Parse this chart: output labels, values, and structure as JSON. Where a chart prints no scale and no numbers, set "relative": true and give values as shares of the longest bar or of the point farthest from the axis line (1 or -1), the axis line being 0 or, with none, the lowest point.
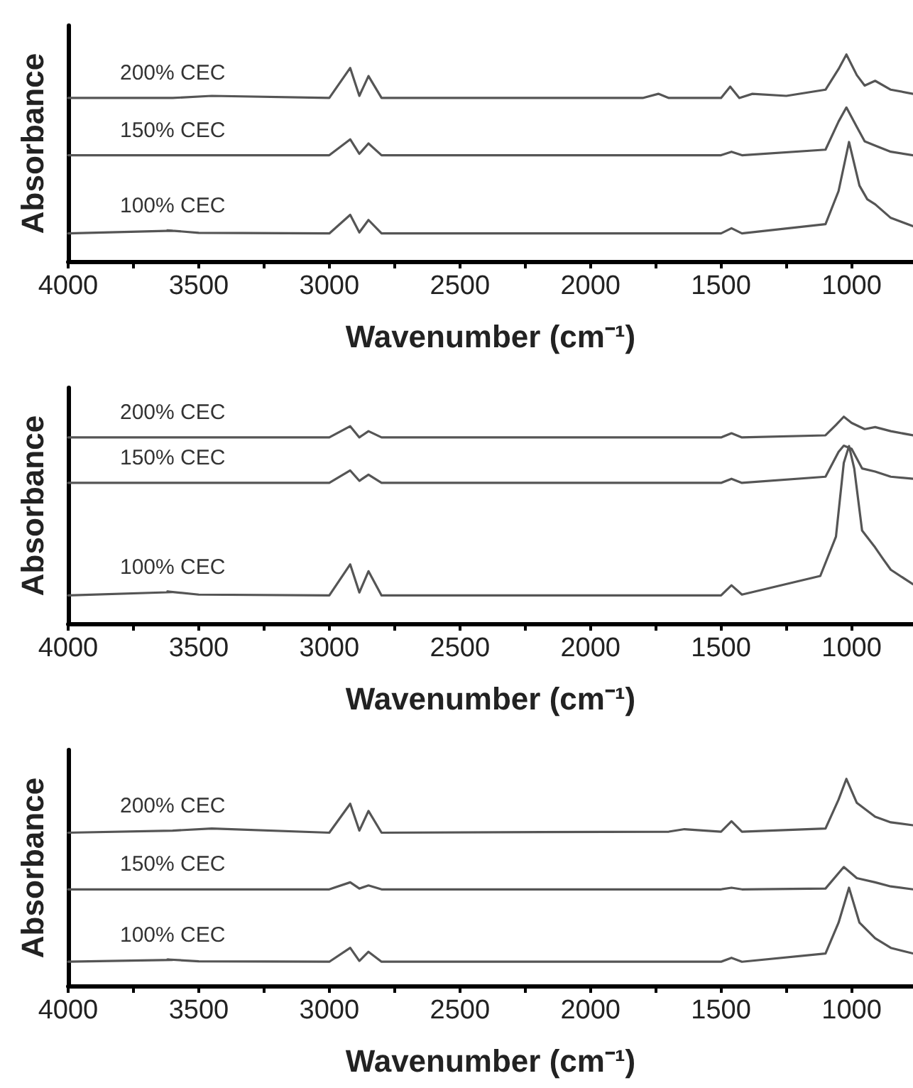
{
  "chart_data": [
    {
      "type": "line",
      "relative": true,
      "xlabel": "Wavenumber (cm⁻¹)",
      "ylabel": "Absorbance",
      "xlim": [
        4000,
        765
      ],
      "xticks": [
        4000,
        {
          "value": 3750,
          "label": null
        },
        3500,
        {
          "value": 3250,
          "label": null
        },
        3000,
        {
          "value": 2750,
          "label": null
        },
        2500,
        {
          "value": 2250,
          "label": null
        },
        2000,
        {
          "value": 1750,
          "label": null
        },
        1500,
        {
          "value": 1250,
          "label": null
        },
        1000
      ],
      "grid": false,
      "legend": false,
      "line_style": "solid",
      "series": [
        {
          "name": "200% CEC",
          "color": "#555555",
          "x": [
            4000,
            3600,
            3450,
            3000,
            2920,
            2885,
            2850,
            2800,
            1800,
            1740,
            1700,
            1500,
            1465,
            1430,
            1380,
            1250,
            1100,
            1050,
            1020,
            980,
            950,
            910,
            850,
            765
          ],
          "values": [
            0.79,
            0.79,
            0.8,
            0.79,
            0.935,
            0.8,
            0.896,
            0.79,
            0.79,
            0.81,
            0.79,
            0.79,
            0.845,
            0.79,
            0.81,
            0.8,
            0.83,
            0.93,
            1.0,
            0.9,
            0.85,
            0.873,
            0.83,
            0.81
          ]
        },
        {
          "name": "150% CEC",
          "color": "#555555",
          "x": [
            4000,
            3600,
            3000,
            2920,
            2885,
            2850,
            2800,
            1500,
            1460,
            1420,
            1100,
            1050,
            1020,
            980,
            950,
            910,
            850,
            765
          ],
          "values": [
            0.513,
            0.513,
            0.513,
            0.59,
            0.52,
            0.57,
            0.513,
            0.513,
            0.53,
            0.513,
            0.54,
            0.676,
            0.744,
            0.65,
            0.58,
            0.56,
            0.53,
            0.513
          ]
        },
        {
          "name": "100% CEC",
          "color": "#555555",
          "x": [
            4000,
            3600,
            3620,
            3500,
            3000,
            2920,
            2885,
            2850,
            2800,
            1500,
            1460,
            1420,
            1100,
            1050,
            1010,
            970,
            940,
            910,
            850,
            765
          ],
          "values": [
            0.135,
            0.148,
            0.15,
            0.138,
            0.135,
            0.225,
            0.14,
            0.2,
            0.135,
            0.135,
            0.16,
            0.135,
            0.18,
            0.34,
            0.577,
            0.366,
            0.3,
            0.276,
            0.21,
            0.17
          ]
        }
      ]
    },
    {
      "type": "line",
      "relative": true,
      "xlabel": "Wavenumber (cm⁻¹)",
      "ylabel": "Absorbance",
      "xlim": [
        4000,
        765
      ],
      "xticks": [
        4000,
        {
          "value": 3750,
          "label": null
        },
        3500,
        {
          "value": 3250,
          "label": null
        },
        3000,
        {
          "value": 2750,
          "label": null
        },
        2500,
        {
          "value": 2250,
          "label": null
        },
        2000,
        {
          "value": 1750,
          "label": null
        },
        1500,
        {
          "value": 1250,
          "label": null
        },
        1000
      ],
      "grid": false,
      "legend": false,
      "line_style": "solid",
      "series": [
        {
          "name": "200% CEC",
          "color": "#555555",
          "x": [
            4000,
            3600,
            3000,
            2920,
            2885,
            2850,
            2800,
            1500,
            1460,
            1420,
            1100,
            1060,
            1030,
            1000,
            950,
            910,
            850,
            765
          ],
          "values": [
            0.9,
            0.9,
            0.9,
            0.954,
            0.9,
            0.93,
            0.9,
            0.9,
            0.92,
            0.9,
            0.91,
            0.96,
            1.0,
            0.97,
            0.94,
            0.95,
            0.93,
            0.91
          ]
        },
        {
          "name": "150% CEC",
          "color": "#555555",
          "x": [
            4000,
            3600,
            3000,
            2920,
            2885,
            2850,
            2800,
            1500,
            1460,
            1420,
            1100,
            1050,
            1030,
            1000,
            960,
            910,
            850,
            765
          ],
          "values": [
            0.68,
            0.68,
            0.68,
            0.74,
            0.69,
            0.72,
            0.68,
            0.68,
            0.7,
            0.68,
            0.71,
            0.83,
            0.86,
            0.845,
            0.75,
            0.735,
            0.71,
            0.7
          ]
        },
        {
          "name": "100% CEC",
          "color": "#555555",
          "x": [
            4000,
            3600,
            3620,
            3500,
            3000,
            2920,
            2885,
            2850,
            2800,
            1500,
            1460,
            1420,
            1120,
            1060,
            1030,
            1010,
            990,
            960,
            910,
            880,
            850,
            765
          ],
          "values": [
            0.136,
            0.152,
            0.155,
            0.14,
            0.136,
            0.286,
            0.15,
            0.253,
            0.136,
            0.136,
            0.185,
            0.14,
            0.23,
            0.42,
            0.777,
            0.858,
            0.75,
            0.45,
            0.368,
            0.313,
            0.26,
            0.19
          ]
        }
      ]
    },
    {
      "type": "line",
      "relative": true,
      "xlabel": "Wavenumber (cm⁻¹)",
      "ylabel": "Absorbance",
      "xlim": [
        4000,
        765
      ],
      "xticks": [
        4000,
        {
          "value": 3750,
          "label": null
        },
        3500,
        {
          "value": 3250,
          "label": null
        },
        3000,
        {
          "value": 2750,
          "label": null
        },
        2500,
        {
          "value": 2250,
          "label": null
        },
        2000,
        {
          "value": 1750,
          "label": null
        },
        1500,
        {
          "value": 1250,
          "label": null
        },
        1000
      ],
      "grid": false,
      "legend": false,
      "line_style": "solid",
      "series": [
        {
          "name": "200% CEC",
          "color": "#555555",
          "x": [
            4000,
            3600,
            3450,
            3000,
            2920,
            2885,
            2850,
            2800,
            1700,
            1640,
            1500,
            1460,
            1420,
            1100,
            1050,
            1020,
            980,
            910,
            850,
            765
          ],
          "values": [
            0.74,
            0.75,
            0.76,
            0.74,
            0.88,
            0.75,
            0.845,
            0.74,
            0.745,
            0.757,
            0.745,
            0.795,
            0.745,
            0.76,
            0.9,
            1.0,
            0.884,
            0.817,
            0.79,
            0.776
          ]
        },
        {
          "name": "150% CEC",
          "color": "#555555",
          "x": [
            4000,
            3600,
            3000,
            2920,
            2885,
            2850,
            2800,
            1500,
            1460,
            1420,
            1100,
            1030,
            980,
            910,
            850,
            765
          ],
          "values": [
            0.466,
            0.466,
            0.466,
            0.5,
            0.47,
            0.485,
            0.466,
            0.466,
            0.474,
            0.466,
            0.47,
            0.574,
            0.52,
            0.5,
            0.48,
            0.466
          ]
        },
        {
          "name": "100% CEC",
          "color": "#555555",
          "x": [
            4000,
            3600,
            3620,
            3500,
            3000,
            2920,
            2885,
            2850,
            2800,
            1500,
            1460,
            1420,
            1100,
            1050,
            1010,
            970,
            910,
            850,
            765
          ],
          "values": [
            0.116,
            0.125,
            0.127,
            0.118,
            0.116,
            0.183,
            0.12,
            0.164,
            0.116,
            0.116,
            0.135,
            0.116,
            0.156,
            0.305,
            0.474,
            0.305,
            0.23,
            0.183,
            0.156
          ]
        }
      ]
    }
  ]
}
